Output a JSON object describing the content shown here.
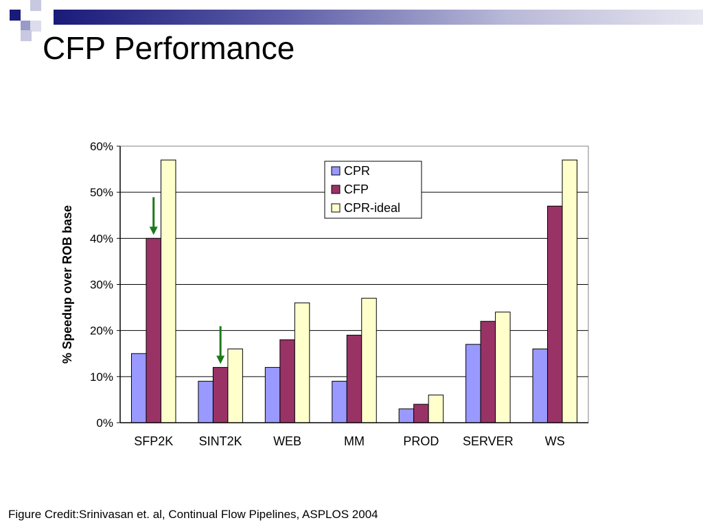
{
  "slide": {
    "title": "CFP Performance",
    "credit": "Figure Credit:Srinivasan et. al, Continual Flow Pipelines, ASPLOS 2004"
  },
  "chart_data": {
    "type": "bar",
    "title": "",
    "xlabel": "",
    "ylabel": "% Speedup over ROB base",
    "ylim": [
      0,
      60
    ],
    "yticks": [
      "0%",
      "10%",
      "20%",
      "30%",
      "40%",
      "50%",
      "60%"
    ],
    "categories": [
      "SFP2K",
      "SINT2K",
      "WEB",
      "MM",
      "PROD",
      "SERVER",
      "WS"
    ],
    "series": [
      {
        "name": "CPR",
        "color": "#9999ff",
        "values": [
          15,
          9,
          12,
          9,
          3,
          17,
          16
        ]
      },
      {
        "name": "CFP",
        "color": "#993366",
        "values": [
          40,
          12,
          18,
          19,
          4,
          22,
          47
        ]
      },
      {
        "name": "CPR-ideal",
        "color": "#ffffcc",
        "values": [
          57,
          16,
          26,
          27,
          6,
          24,
          57
        ]
      }
    ],
    "grid": true,
    "legend": "top-right",
    "annotations": [
      {
        "type": "arrow",
        "color": "#1a7a1a",
        "category": "SFP2K",
        "series": "CFP"
      },
      {
        "type": "arrow",
        "color": "#1a7a1a",
        "category": "SINT2K",
        "series": "CFP"
      }
    ]
  }
}
